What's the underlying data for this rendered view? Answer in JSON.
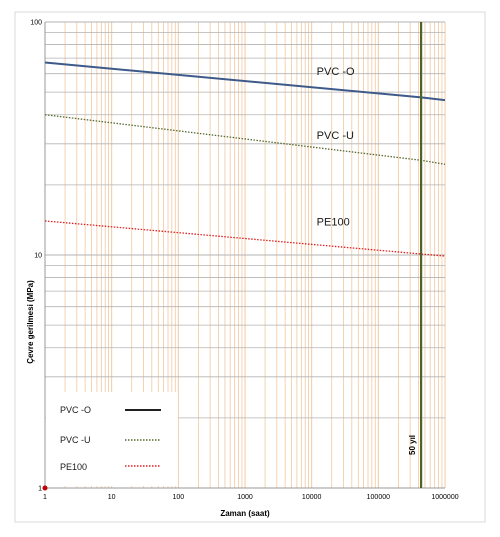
{
  "chart_data": {
    "type": "line",
    "xlabel": "Zaman (saat)",
    "ylabel": "Çevre gerilmesi (MPa)",
    "xscale": "log",
    "yscale": "log",
    "xlim": [
      1,
      1000000
    ],
    "ylim": [
      1,
      100
    ],
    "x_ticks": [
      "1",
      "10",
      "100",
      "1000",
      "10000",
      "100000",
      "1000000"
    ],
    "y_ticks": [
      "1",
      "10",
      "100"
    ],
    "grid": true,
    "legend_placement": "bottom-left",
    "series": [
      {
        "name": "PVC -O",
        "style": "solid",
        "color": "#3d5a8a",
        "x": [
          1,
          438000,
          1000000
        ],
        "y": [
          67,
          47.5,
          46.2
        ]
      },
      {
        "name": "PVC -U",
        "style": "dotted",
        "color": "#556b2f",
        "x": [
          1,
          438000,
          1000000
        ],
        "y": [
          40,
          25.5,
          24.5
        ]
      },
      {
        "name": "PE100",
        "style": "dotted",
        "color": "#e02020",
        "x": [
          1,
          438000,
          1000000
        ],
        "y": [
          14,
          10.1,
          9.9
        ]
      }
    ],
    "annotations": [
      {
        "text": "50 yıl",
        "x": 438000
      }
    ]
  },
  "colors": {
    "grid_major": "#b3b3b3",
    "grid_minor": "#f2c8a0",
    "marker_line": "#4f6228",
    "start_point": "#c00000"
  }
}
